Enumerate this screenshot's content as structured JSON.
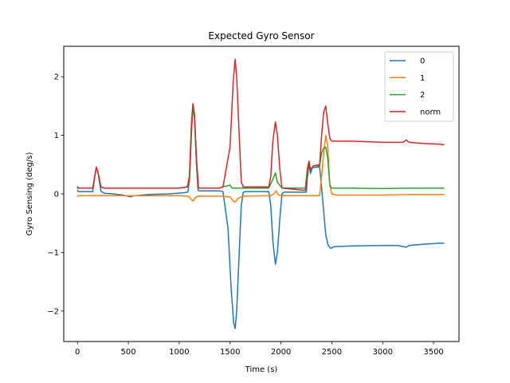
{
  "chart_data": {
    "type": "line",
    "title": "Expected Gyro Sensor",
    "xlabel": "Time (s)",
    "ylabel": "Gyro Sensing (deg/s)",
    "xlim": [
      -135,
      3750
    ],
    "ylim": [
      -2.52,
      2.52
    ],
    "xticks": [
      0,
      500,
      1000,
      1500,
      2000,
      2500,
      3000,
      3500
    ],
    "xtick_labels": [
      "0",
      "500",
      "1000",
      "1500",
      "2000",
      "2500",
      "3000",
      "3500"
    ],
    "yticks": [
      -2,
      -1,
      0,
      1,
      2
    ],
    "ytick_labels": [
      "−2",
      "−1",
      "0",
      "1",
      "2"
    ],
    "grid": false,
    "legend_position": "top-right",
    "series": [
      {
        "name": "0",
        "color": "#1f77b4",
        "points": [
          [
            0,
            0.06
          ],
          [
            10,
            0.04
          ],
          [
            150,
            0.04
          ],
          [
            170,
            0.3
          ],
          [
            185,
            0.45
          ],
          [
            200,
            0.38
          ],
          [
            230,
            0.05
          ],
          [
            260,
            0.01
          ],
          [
            350,
            0.0
          ],
          [
            450,
            -0.02
          ],
          [
            520,
            -0.05
          ],
          [
            560,
            -0.03
          ],
          [
            700,
            -0.01
          ],
          [
            900,
            0.0
          ],
          [
            1050,
            0.02
          ],
          [
            1085,
            0.03
          ],
          [
            1100,
            0.25
          ],
          [
            1120,
            1.1
          ],
          [
            1135,
            1.5
          ],
          [
            1150,
            1.3
          ],
          [
            1170,
            0.5
          ],
          [
            1185,
            0.06
          ],
          [
            1200,
            0.05
          ],
          [
            1400,
            0.05
          ],
          [
            1430,
            0.04
          ],
          [
            1480,
            -0.6
          ],
          [
            1510,
            -1.6
          ],
          [
            1535,
            -2.2
          ],
          [
            1550,
            -2.3
          ],
          [
            1565,
            -2.0
          ],
          [
            1590,
            -1.0
          ],
          [
            1610,
            -0.2
          ],
          [
            1630,
            0.03
          ],
          [
            1650,
            0.04
          ],
          [
            1880,
            0.04
          ],
          [
            1900,
            -0.2
          ],
          [
            1920,
            -0.8
          ],
          [
            1945,
            -1.2
          ],
          [
            1965,
            -1.0
          ],
          [
            1990,
            -0.4
          ],
          [
            2010,
            0.0
          ],
          [
            2030,
            0.03
          ],
          [
            2250,
            0.03
          ],
          [
            2260,
            0.3
          ],
          [
            2275,
            0.5
          ],
          [
            2290,
            0.35
          ],
          [
            2310,
            0.45
          ],
          [
            2380,
            0.46
          ],
          [
            2400,
            0.1
          ],
          [
            2420,
            -0.3
          ],
          [
            2440,
            -0.7
          ],
          [
            2465,
            -0.88
          ],
          [
            2490,
            -0.93
          ],
          [
            2520,
            -0.9
          ],
          [
            2700,
            -0.89
          ],
          [
            3000,
            -0.88
          ],
          [
            3150,
            -0.88
          ],
          [
            3230,
            -0.91
          ],
          [
            3260,
            -0.88
          ],
          [
            3400,
            -0.86
          ],
          [
            3550,
            -0.84
          ],
          [
            3600,
            -0.84
          ]
        ]
      },
      {
        "name": "1",
        "color": "#ff7f0e",
        "points": [
          [
            0,
            -0.04
          ],
          [
            10,
            -0.03
          ],
          [
            150,
            -0.03
          ],
          [
            500,
            -0.03
          ],
          [
            1000,
            -0.03
          ],
          [
            1090,
            -0.04
          ],
          [
            1120,
            -0.1
          ],
          [
            1140,
            -0.12
          ],
          [
            1160,
            -0.06
          ],
          [
            1185,
            -0.04
          ],
          [
            1400,
            -0.04
          ],
          [
            1500,
            -0.05
          ],
          [
            1530,
            -0.12
          ],
          [
            1550,
            -0.14
          ],
          [
            1575,
            -0.08
          ],
          [
            1620,
            -0.04
          ],
          [
            1900,
            -0.03
          ],
          [
            1930,
            0.0
          ],
          [
            1950,
            0.05
          ],
          [
            1975,
            -0.02
          ],
          [
            2010,
            -0.03
          ],
          [
            2230,
            -0.03
          ],
          [
            2380,
            -0.03
          ],
          [
            2400,
            0.3
          ],
          [
            2420,
            0.7
          ],
          [
            2440,
            1.0
          ],
          [
            2460,
            0.8
          ],
          [
            2480,
            0.15
          ],
          [
            2500,
            0.0
          ],
          [
            2550,
            -0.02
          ],
          [
            2700,
            -0.02
          ],
          [
            3000,
            -0.02
          ],
          [
            3300,
            -0.01
          ],
          [
            3600,
            -0.01
          ]
        ]
      },
      {
        "name": "2",
        "color": "#2ca02c",
        "points": [
          [
            0,
            0.1
          ],
          [
            150,
            0.1
          ],
          [
            170,
            0.3
          ],
          [
            185,
            0.45
          ],
          [
            200,
            0.38
          ],
          [
            230,
            0.12
          ],
          [
            260,
            0.1
          ],
          [
            500,
            0.1
          ],
          [
            1000,
            0.1
          ],
          [
            1080,
            0.12
          ],
          [
            1100,
            0.2
          ],
          [
            1120,
            1.0
          ],
          [
            1135,
            1.5
          ],
          [
            1150,
            1.3
          ],
          [
            1170,
            0.5
          ],
          [
            1185,
            0.1
          ],
          [
            1400,
            0.1
          ],
          [
            1430,
            0.12
          ],
          [
            1500,
            0.15
          ],
          [
            1520,
            0.1
          ],
          [
            1600,
            0.1
          ],
          [
            1880,
            0.1
          ],
          [
            1920,
            0.25
          ],
          [
            1945,
            0.36
          ],
          [
            1965,
            0.2
          ],
          [
            2010,
            0.1
          ],
          [
            2240,
            0.1
          ],
          [
            2260,
            0.45
          ],
          [
            2275,
            0.55
          ],
          [
            2290,
            0.4
          ],
          [
            2320,
            0.48
          ],
          [
            2380,
            0.48
          ],
          [
            2400,
            0.7
          ],
          [
            2420,
            0.78
          ],
          [
            2440,
            0.8
          ],
          [
            2460,
            0.6
          ],
          [
            2480,
            0.15
          ],
          [
            2500,
            0.1
          ],
          [
            2700,
            0.1
          ],
          [
            3000,
            0.09
          ],
          [
            3300,
            0.1
          ],
          [
            3550,
            0.1
          ],
          [
            3600,
            0.1
          ]
        ]
      },
      {
        "name": "norm",
        "color": "#d62728",
        "points": [
          [
            0,
            0.12
          ],
          [
            10,
            0.1
          ],
          [
            150,
            0.1
          ],
          [
            170,
            0.3
          ],
          [
            185,
            0.46
          ],
          [
            200,
            0.38
          ],
          [
            230,
            0.12
          ],
          [
            260,
            0.1
          ],
          [
            500,
            0.1
          ],
          [
            1000,
            0.1
          ],
          [
            1080,
            0.12
          ],
          [
            1100,
            0.3
          ],
          [
            1120,
            1.2
          ],
          [
            1135,
            1.54
          ],
          [
            1150,
            1.35
          ],
          [
            1170,
            0.6
          ],
          [
            1190,
            0.1
          ],
          [
            1400,
            0.1
          ],
          [
            1430,
            0.12
          ],
          [
            1500,
            0.8
          ],
          [
            1530,
            1.9
          ],
          [
            1550,
            2.3
          ],
          [
            1565,
            2.0
          ],
          [
            1590,
            1.0
          ],
          [
            1610,
            0.2
          ],
          [
            1630,
            0.12
          ],
          [
            1880,
            0.12
          ],
          [
            1900,
            0.3
          ],
          [
            1920,
            0.9
          ],
          [
            1945,
            1.23
          ],
          [
            1965,
            1.0
          ],
          [
            1990,
            0.4
          ],
          [
            2010,
            0.1
          ],
          [
            2240,
            0.06
          ],
          [
            2260,
            0.3
          ],
          [
            2275,
            0.56
          ],
          [
            2290,
            0.42
          ],
          [
            2320,
            0.48
          ],
          [
            2380,
            0.5
          ],
          [
            2400,
            1.0
          ],
          [
            2420,
            1.4
          ],
          [
            2440,
            1.5
          ],
          [
            2460,
            1.2
          ],
          [
            2480,
            0.95
          ],
          [
            2500,
            0.9
          ],
          [
            2700,
            0.9
          ],
          [
            3000,
            0.88
          ],
          [
            3200,
            0.88
          ],
          [
            3230,
            0.92
          ],
          [
            3260,
            0.88
          ],
          [
            3400,
            0.86
          ],
          [
            3550,
            0.85
          ],
          [
            3600,
            0.84
          ]
        ]
      }
    ]
  }
}
